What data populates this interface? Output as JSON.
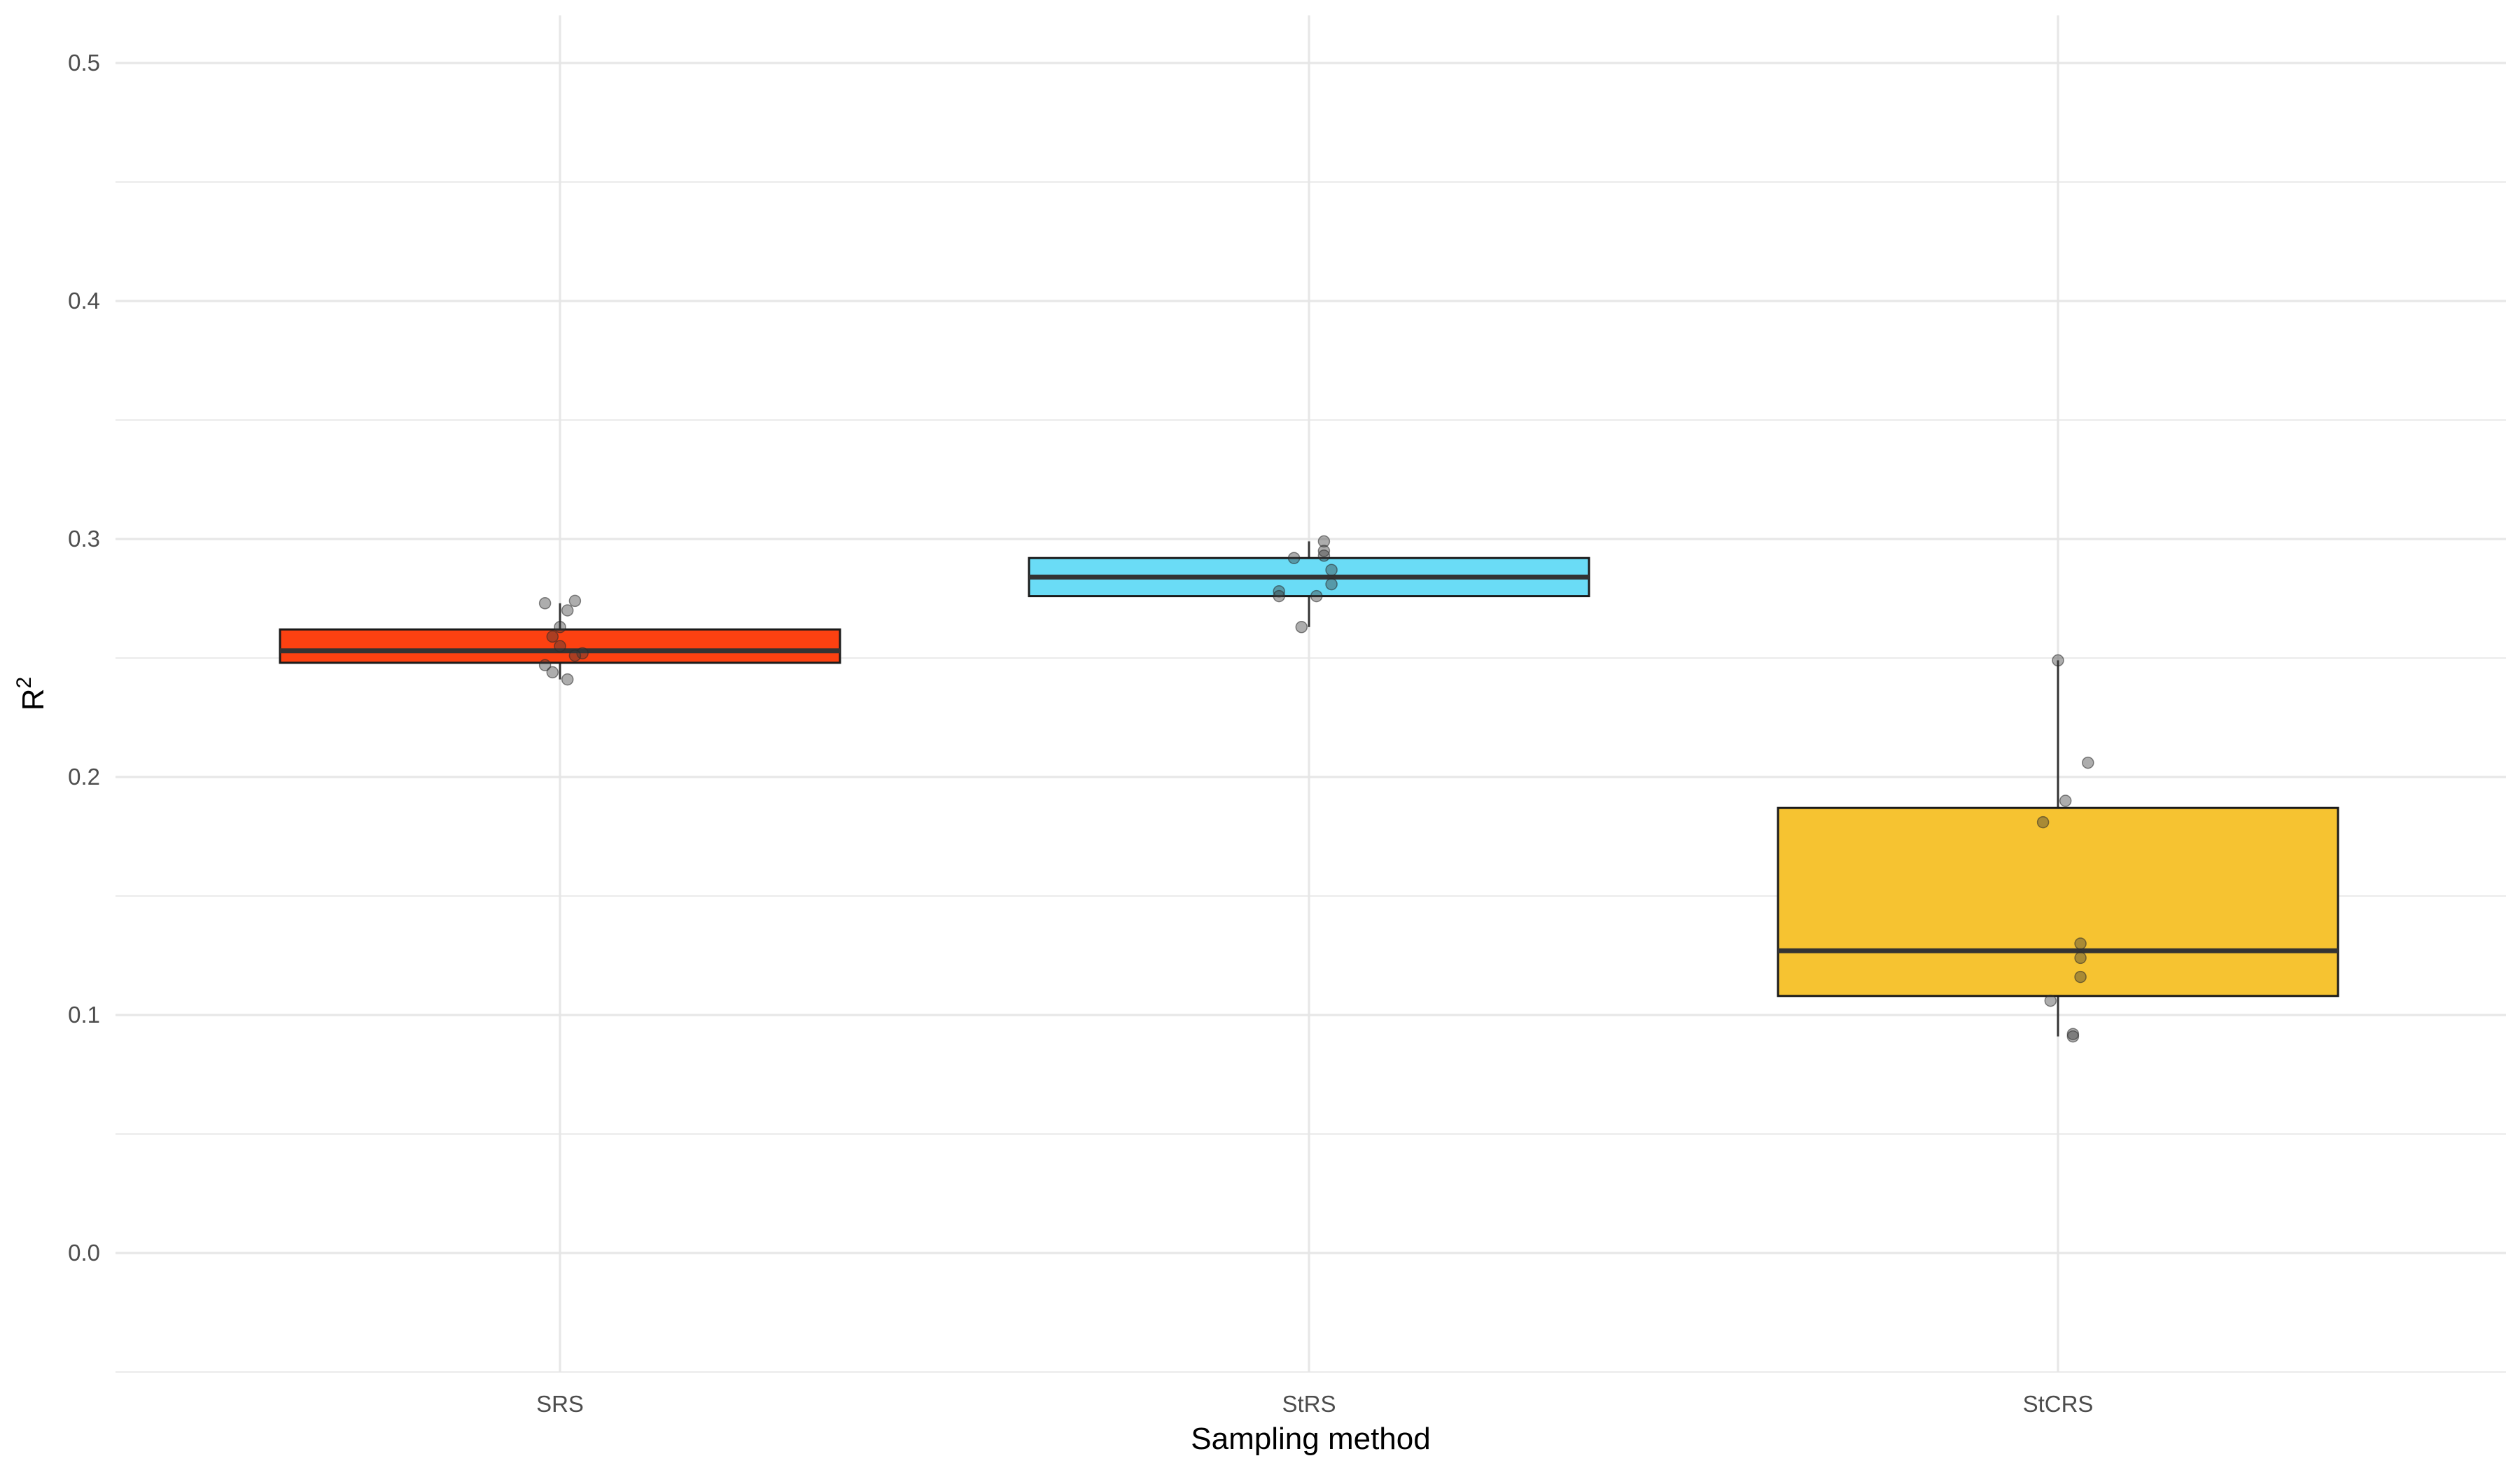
{
  "chart_data": {
    "type": "box",
    "xlabel": "Sampling method",
    "ylabel": "R",
    "ylabel_superscript": "2",
    "ylim": [
      -0.05,
      0.52
    ],
    "yticks": [
      0.0,
      0.1,
      0.2,
      0.3,
      0.4,
      0.5
    ],
    "ytick_labels": [
      "0.0",
      "0.1",
      "0.2",
      "0.3",
      "0.4",
      "0.5"
    ],
    "minor_yticks": [
      -0.05,
      0.05,
      0.15,
      0.25,
      0.35,
      0.45
    ],
    "categories": [
      "SRS",
      "StRS",
      "StCRS"
    ],
    "grid": true,
    "legend": "none",
    "boxes": [
      {
        "category": "SRS",
        "color": "#FC4111",
        "whisker_low": 0.241,
        "q1": 0.248,
        "median": 0.253,
        "q3": 0.262,
        "whisker_high": 0.273,
        "points": [
          {
            "offset": -0.02,
            "y": 0.273
          },
          {
            "offset": 0.02,
            "y": 0.274
          },
          {
            "offset": 0.01,
            "y": 0.27
          },
          {
            "offset": 0.0,
            "y": 0.263
          },
          {
            "offset": -0.01,
            "y": 0.259
          },
          {
            "offset": 0.0,
            "y": 0.255
          },
          {
            "offset": 0.03,
            "y": 0.252
          },
          {
            "offset": 0.02,
            "y": 0.251
          },
          {
            "offset": -0.02,
            "y": 0.247
          },
          {
            "offset": -0.01,
            "y": 0.244
          },
          {
            "offset": 0.01,
            "y": 0.241
          }
        ]
      },
      {
        "category": "StRS",
        "color": "#6ADCF6",
        "whisker_low": 0.263,
        "q1": 0.276,
        "median": 0.284,
        "q3": 0.292,
        "whisker_high": 0.299,
        "points": [
          {
            "offset": 0.02,
            "y": 0.299
          },
          {
            "offset": 0.02,
            "y": 0.295
          },
          {
            "offset": -0.02,
            "y": 0.292
          },
          {
            "offset": 0.02,
            "y": 0.293
          },
          {
            "offset": 0.03,
            "y": 0.287
          },
          {
            "offset": 0.03,
            "y": 0.281
          },
          {
            "offset": -0.04,
            "y": 0.278
          },
          {
            "offset": -0.04,
            "y": 0.276
          },
          {
            "offset": 0.01,
            "y": 0.276
          },
          {
            "offset": -0.01,
            "y": 0.263
          }
        ]
      },
      {
        "category": "StCRS",
        "color": "#F6C331",
        "whisker_low": 0.091,
        "q1": 0.108,
        "median": 0.127,
        "q3": 0.187,
        "whisker_high": 0.249,
        "points": [
          {
            "offset": 0.0,
            "y": 0.249
          },
          {
            "offset": 0.04,
            "y": 0.206
          },
          {
            "offset": 0.01,
            "y": 0.19
          },
          {
            "offset": -0.02,
            "y": 0.181
          },
          {
            "offset": 0.03,
            "y": 0.13
          },
          {
            "offset": 0.03,
            "y": 0.124
          },
          {
            "offset": 0.03,
            "y": 0.116
          },
          {
            "offset": -0.01,
            "y": 0.106
          },
          {
            "offset": 0.02,
            "y": 0.092
          },
          {
            "offset": 0.02,
            "y": 0.091
          }
        ]
      }
    ]
  }
}
